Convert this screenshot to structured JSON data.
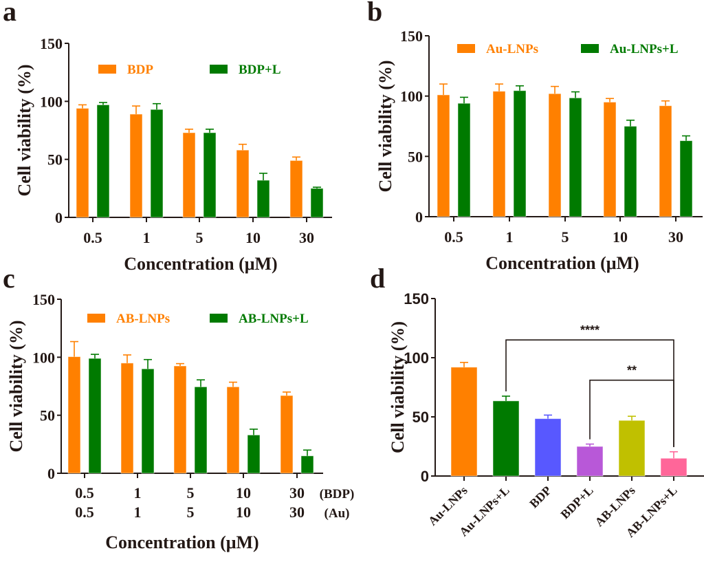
{
  "chart_data": [
    {
      "panel": "a",
      "type": "bar",
      "title": "",
      "xlabel": "Concentration (μM)",
      "ylabel": "Cell viability (%)",
      "ylim": [
        0,
        150
      ],
      "yticks": [
        0,
        50,
        100,
        150
      ],
      "categories": [
        "0.5",
        "1",
        "5",
        "10",
        "30"
      ],
      "legend_position": "top",
      "series": [
        {
          "name": "BDP",
          "color": "#FF8000",
          "values": [
            94,
            89,
            73,
            58,
            49
          ],
          "errors": [
            3,
            7,
            3,
            5,
            3
          ]
        },
        {
          "name": "BDP+L",
          "color": "#007A00",
          "values": [
            97,
            93,
            73,
            32,
            25
          ],
          "errors": [
            2,
            5,
            3,
            6,
            1
          ]
        }
      ]
    },
    {
      "panel": "b",
      "type": "bar",
      "title": "",
      "xlabel": "Concentration (μM)",
      "ylabel": "Cell viability (%)",
      "ylim": [
        0,
        150
      ],
      "yticks": [
        0,
        50,
        100,
        150
      ],
      "categories": [
        "0.5",
        "1",
        "5",
        "10",
        "30"
      ],
      "legend_position": "top",
      "series": [
        {
          "name": "Au-LNPs",
          "color": "#FF8000",
          "values": [
            101,
            104,
            102,
            95,
            92
          ],
          "errors": [
            9,
            6,
            6,
            3,
            4
          ]
        },
        {
          "name": "Au-LNPs+L",
          "color": "#007A00",
          "values": [
            94,
            104.5,
            98.5,
            75,
            63
          ],
          "errors": [
            5,
            4,
            5,
            5,
            4
          ]
        }
      ]
    },
    {
      "panel": "c",
      "type": "bar",
      "title": "",
      "xlabel": "Concentration (μM)",
      "ylabel": "Cell viability (%)",
      "ylim": [
        0,
        150
      ],
      "yticks": [
        0,
        50,
        100,
        150
      ],
      "categories": [
        "0.5",
        "1",
        "5",
        "10",
        "30"
      ],
      "secondary_categories": [
        "0.5",
        "1",
        "5",
        "10",
        "30"
      ],
      "category_row_labels": [
        "(BDP)",
        "(Au)"
      ],
      "legend_position": "top",
      "series": [
        {
          "name": "AB-LNPs",
          "color": "#FF8000",
          "values": [
            100.5,
            95,
            92.5,
            74.5,
            67
          ],
          "errors": [
            13,
            7,
            2,
            4,
            3
          ]
        },
        {
          "name": "AB-LNPs+L",
          "color": "#007A00",
          "values": [
            99,
            90,
            74.5,
            33,
            15
          ],
          "errors": [
            3.5,
            8,
            6,
            5,
            5
          ]
        }
      ]
    },
    {
      "panel": "d",
      "type": "bar",
      "title": "",
      "xlabel": "",
      "ylabel": "Cell viability (%)",
      "ylim": [
        0,
        150
      ],
      "yticks": [
        0,
        50,
        100,
        150
      ],
      "categories": [
        "Au-LNPs",
        "Au-LNPs+L",
        "BDP",
        "BDP+L",
        "AB-LNPs",
        "AB-LNPs+L"
      ],
      "values": [
        92,
        63.5,
        48.5,
        25,
        47,
        15
      ],
      "errors": [
        4,
        4,
        3,
        2,
        3.5,
        5.5
      ],
      "colors": [
        "#FF8000",
        "#007A00",
        "#5858FF",
        "#B858D8",
        "#C0C000",
        "#FF6699"
      ],
      "significance": [
        {
          "from": "Au-LNPs+L",
          "to": "AB-LNPs+L",
          "label": "****",
          "bracket_value": 115
        },
        {
          "from": "BDP+L",
          "to": "AB-LNPs+L",
          "label": "**",
          "bracket_value": 81
        }
      ]
    }
  ],
  "panel_letters": [
    "a",
    "b",
    "c",
    "d"
  ]
}
